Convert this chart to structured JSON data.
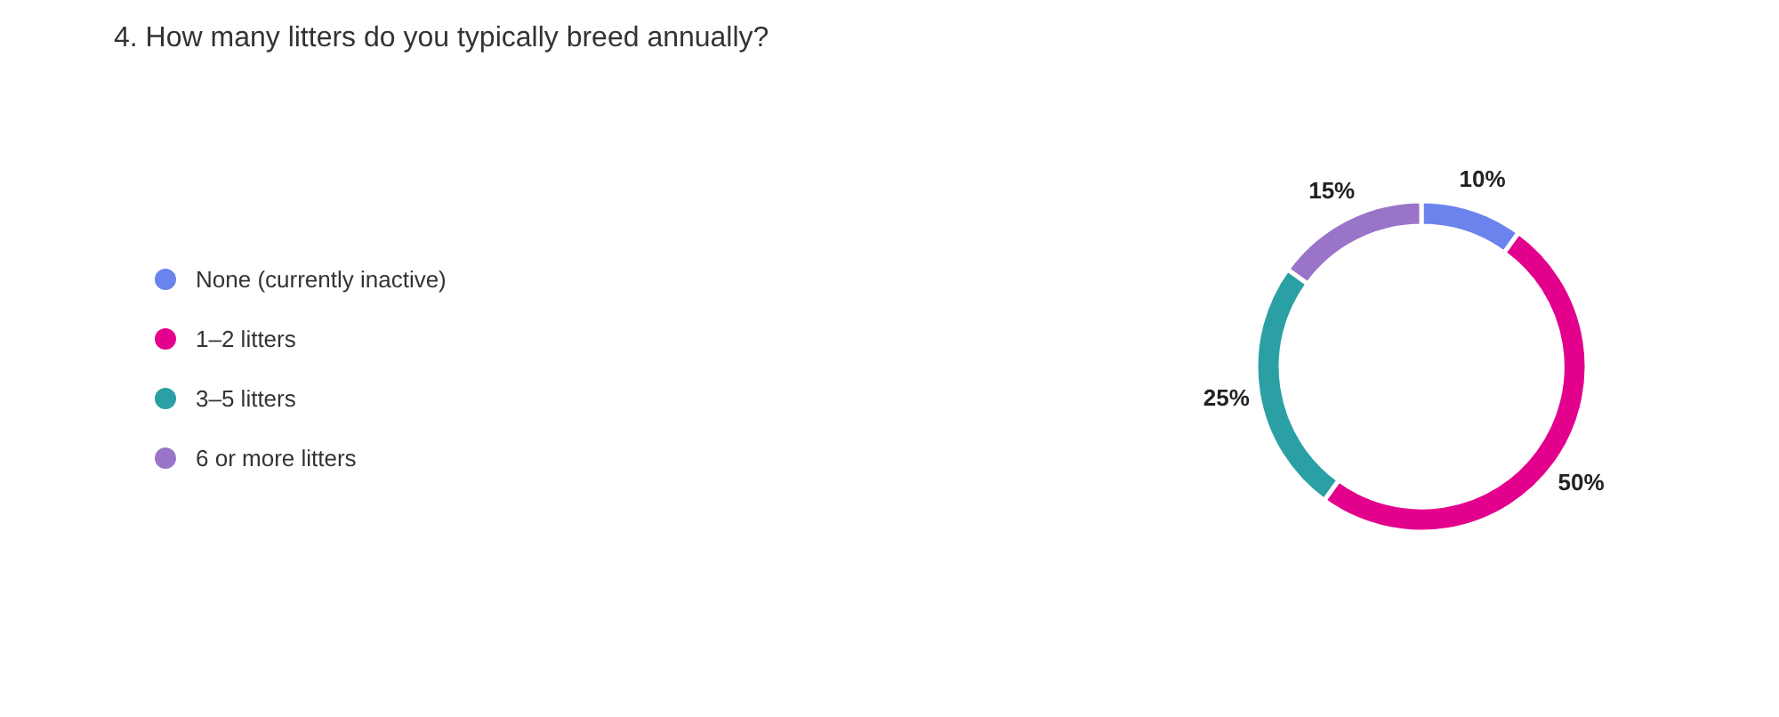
{
  "chart_data": {
    "type": "donut",
    "title": "4. How many litters do you typically breed annually?",
    "categories": [
      "None (currently inactive)",
      "1–2 litters",
      "3–5 litters",
      "6 or more litters"
    ],
    "values": [
      10,
      50,
      25,
      15
    ],
    "colors": [
      "#6b83ec",
      "#e3008c",
      "#2aa0a4",
      "#9a74c9"
    ],
    "value_labels": [
      "10%",
      "50%",
      "25%",
      "15%"
    ],
    "legend": "left"
  }
}
